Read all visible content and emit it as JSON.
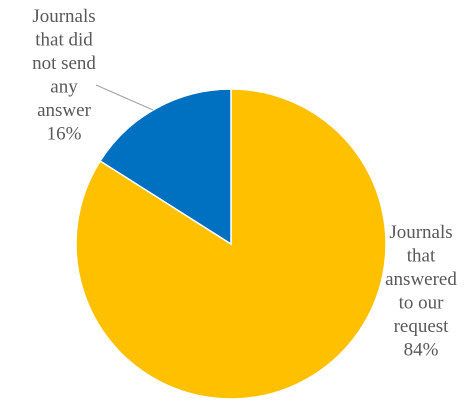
{
  "chart_data": {
    "type": "pie",
    "title": "",
    "slices": [
      {
        "label": "Journals that answered to our request",
        "label_lines": [
          "Journals",
          "that",
          "answered",
          "to our",
          "request",
          "84%"
        ],
        "value": 84,
        "color": "#FFC000"
      },
      {
        "label": "Journals that did not send any answer",
        "label_lines": [
          "Journals",
          "that did",
          "not send",
          "any",
          "answer",
          "16%"
        ],
        "value": 16,
        "color": "#0070C0"
      }
    ],
    "legend": "none",
    "data_labels": "outside, category name and percentage",
    "leader_line_color": "#A6A6A6",
    "slice_border_color": "#FFFFFF"
  }
}
